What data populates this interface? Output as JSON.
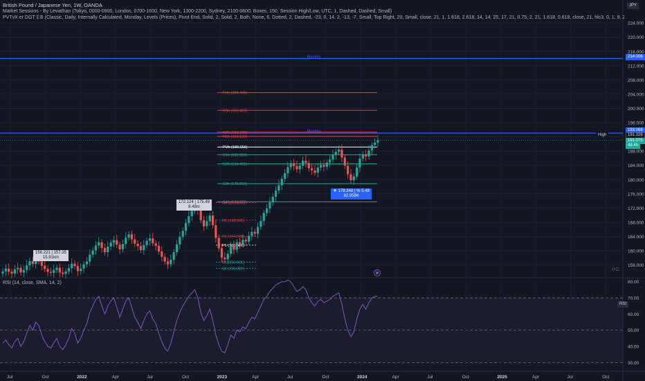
{
  "header": {
    "line1": "British Pound / Japanese Yen, 1W, OANDA",
    "line2": "Market Sessions - By Leviathan (Tokyo, 0000-0900, London, 0700-1600, New York, 1300-2200, Sydney, 2100-0600, Boxes, 150, Session High/Low, UTC, 1, Dashed, Dashed, Small)",
    "line3": "PVTvX er DGT 𝔼𝔹 (Classic, Daily, Internally Calculated, Monday, Levels (Prices), Pivot End, Solid, 2, Solid, 2, Both, None, 6, Dotted, 2, Dashed, -23, 0, 14, 2, -13, -7, Small, Top Right, 20, Small, close, 21, 1, 1.618, 2.618, 14, 14, 25, 17, 21, 0.75, 2, 21, 1.618, 0.618, close, 21, hlc3, 0, 1, 9, 26, 52, 26, 2, Solid, -2, Solid, 0.68, 100, close, close, 14, 30, 7("
  },
  "currency": "JPY",
  "rsi_title": "RSI (14, close, SMA, 14, 2)",
  "rsi_tag": "RSI",
  "watermark_icon": "indicator-target-icon",
  "price_axis": [
    "224.000",
    "220.000",
    "216.000",
    "212.000",
    "208.000",
    "204.000",
    "200.000",
    "196.000",
    "192.000",
    "188.000",
    "184.000",
    "180.000",
    "176.000",
    "172.000",
    "168.000",
    "164.000",
    "160.000",
    "156.000"
  ],
  "rsi_axis": [
    "80.00",
    "70.00",
    "60.00",
    "50.00",
    "40.00",
    "30.00"
  ],
  "time_axis": [
    "Jul",
    "Oct",
    "2022",
    "Apr",
    "Jul",
    "Oct",
    "2023",
    "Apr",
    "Jul",
    "Oct",
    "2024",
    "Apr",
    "Jul",
    "Oct",
    "2025",
    "Apr",
    "Jul",
    "Oct"
  ],
  "price_tags": {
    "monthly_upper": "214.006",
    "monthly_lower": "193.069",
    "high_label": "High",
    "high_value": "191.326",
    "last_value": "191.075",
    "countdown": "4d 4h"
  },
  "monthly_label": "Monthly",
  "pivot_levels": [
    {
      "name": "R4h (204.439)",
      "price": 204.439,
      "color": "#f23645"
    },
    {
      "name": "R3h (199.453)",
      "price": 199.453,
      "color": "#f23645"
    },
    {
      "name": "R2h (193.326)",
      "price": 193.326,
      "color": "#f23645"
    },
    {
      "name": "R1h (192.133)",
      "price": 192.133,
      "color": "#f23645"
    },
    {
      "name": "PVh (189.155)",
      "price": 189.155,
      "color": "#ffffff"
    },
    {
      "name": "S1h (186.983)",
      "price": 186.983,
      "color": "#26a69a"
    },
    {
      "name": "S2h (184.401)",
      "price": 184.401,
      "color": "#26a69a"
    },
    {
      "name": "S3h (178.850)",
      "price": 178.85,
      "color": "#26a69a"
    },
    {
      "name": "S4h (173.770)",
      "price": 173.77,
      "color": "#26a69a"
    }
  ],
  "yearly_pivots": [
    {
      "name": "R2 (173.555)",
      "price": 173.555,
      "color": "#f23645"
    },
    {
      "name": "R1 (168.595)",
      "price": 168.595,
      "color": "#f23645"
    },
    {
      "name": "P2 (164.045)",
      "price": 164.045,
      "color": "#f23645"
    },
    {
      "name": "P1 (161.587)",
      "price": 161.587,
      "color": "#ffffff"
    },
    {
      "name": "S1 (156.831)",
      "price": 156.831,
      "color": "#26a69a"
    },
    {
      "name": "S2 (155.083)",
      "price": 155.083,
      "color": "#26a69a"
    }
  ],
  "callouts": {
    "a_line1": "156.221 | 157.35",
    "a_line2": "15.91km",
    "b_line1": "172.124 | 175.49",
    "b_line2": "8.48m",
    "c_line1": "▼ 178.348 | % 5.48",
    "c_line2": "82.9594"
  },
  "colors": {
    "up": "#26a69a",
    "down": "#ef5350",
    "monthly": "#2962ff",
    "rsi_line": "#7e57c2",
    "rsi_band": "#7e57c2"
  },
  "chart_data": {
    "type": "candlestick",
    "price_range": [
      153,
      225
    ],
    "rsi_range": [
      25,
      82
    ],
    "candles_close": [
      154.2,
      155.0,
      154.1,
      153.6,
      154.8,
      155.2,
      153.9,
      154.6,
      155.9,
      157.1,
      156.3,
      157.4,
      157.0,
      155.8,
      154.9,
      154.1,
      153.8,
      154.6,
      155.2,
      153.9,
      153.5,
      154.2,
      155.1,
      156.4,
      155.7,
      154.3,
      155.0,
      156.2,
      157.0,
      158.9,
      160.1,
      161.5,
      162.4,
      160.8,
      159.6,
      161.2,
      162.3,
      163.0,
      161.7,
      160.4,
      161.9,
      163.7,
      164.6,
      163.2,
      162.0,
      161.3,
      160.2,
      161.6,
      162.8,
      163.5,
      162.1,
      161.4,
      159.8,
      158.3,
      157.0,
      156.2,
      157.5,
      159.6,
      161.8,
      163.9,
      165.6,
      167.8,
      169.7,
      171.2,
      172.9,
      171.4,
      168.6,
      166.9,
      168.3,
      169.9,
      167.2,
      163.6,
      160.7,
      158.1,
      157.6,
      159.2,
      161.4,
      160.3,
      162.4,
      161.9,
      163.1,
      162.6,
      164.2,
      165.3,
      164.8,
      166.7,
      168.4,
      170.6,
      171.9,
      173.6,
      175.2,
      176.9,
      178.4,
      180.2,
      181.8,
      183.5,
      184.6,
      183.8,
      182.9,
      183.9,
      185.3,
      184.7,
      183.2,
      182.6,
      181.9,
      183.4,
      184.1,
      183.6,
      184.8,
      185.6,
      186.9,
      187.8,
      188.4,
      186.2,
      183.9,
      181.5,
      179.8,
      180.9,
      183.4,
      185.9,
      187.1,
      186.5,
      188.2,
      189.7,
      190.4,
      191.08
    ],
    "rsi_values": [
      42,
      44,
      41,
      39,
      43,
      45,
      40,
      43,
      48,
      53,
      50,
      55,
      53,
      47,
      43,
      40,
      39,
      42,
      45,
      40,
      38,
      41,
      45,
      51,
      48,
      42,
      45,
      50,
      54,
      61,
      65,
      69,
      71,
      65,
      60,
      65,
      68,
      70,
      64,
      58,
      63,
      68,
      70,
      64,
      58,
      55,
      51,
      56,
      60,
      62,
      57,
      54,
      48,
      43,
      39,
      37,
      42,
      49,
      56,
      61,
      65,
      68,
      71,
      73,
      75,
      70,
      61,
      56,
      59,
      63,
      56,
      47,
      41,
      37,
      36,
      41,
      47,
      45,
      50,
      49,
      52,
      51,
      55,
      58,
      57,
      61,
      65,
      69,
      71,
      74,
      76,
      78,
      79,
      80,
      80,
      81,
      80,
      77,
      74,
      75,
      77,
      75,
      70,
      67,
      65,
      68,
      69,
      67,
      68,
      69,
      71,
      72,
      73,
      66,
      57,
      50,
      46,
      49,
      57,
      63,
      66,
      63,
      67,
      70,
      71,
      71
    ]
  }
}
